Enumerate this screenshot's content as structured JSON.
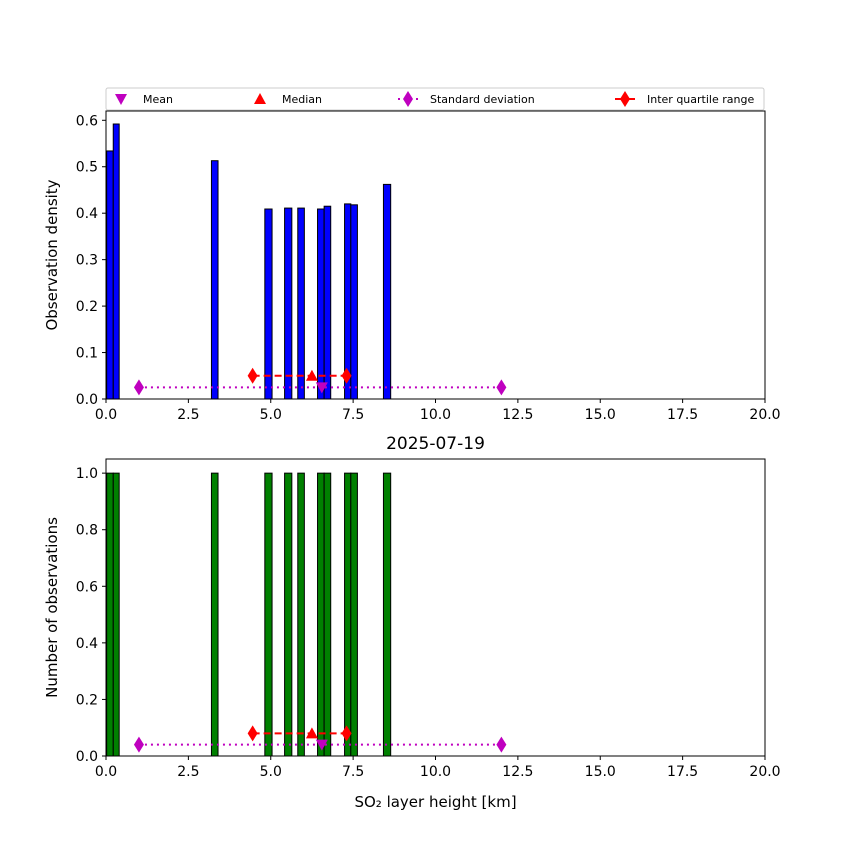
{
  "chart_data": [
    {
      "type": "bar",
      "title": "",
      "xlabel": "",
      "ylabel": "Observation density",
      "xlim": [
        0,
        20
      ],
      "ylim": [
        0,
        0.62
      ],
      "xticks": [
        "0.0",
        "2.5",
        "5.0",
        "7.5",
        "10.0",
        "12.5",
        "15.0",
        "17.5",
        "20.0"
      ],
      "yticks": [
        "0.0",
        "0.1",
        "0.2",
        "0.3",
        "0.4",
        "0.5",
        "0.6"
      ],
      "bar_color": "#0000ff",
      "bars": [
        {
          "left": 0.02,
          "right": 0.22,
          "value": 0.534
        },
        {
          "left": 0.22,
          "right": 0.4,
          "value": 0.592
        },
        {
          "left": 3.2,
          "right": 3.4,
          "value": 0.513
        },
        {
          "left": 4.82,
          "right": 5.04,
          "value": 0.409
        },
        {
          "left": 5.42,
          "right": 5.64,
          "value": 0.411
        },
        {
          "left": 5.82,
          "right": 6.02,
          "value": 0.411
        },
        {
          "left": 6.42,
          "right": 6.62,
          "value": 0.409
        },
        {
          "left": 6.62,
          "right": 6.82,
          "value": 0.415
        },
        {
          "left": 7.24,
          "right": 7.43,
          "value": 0.42
        },
        {
          "left": 7.43,
          "right": 7.63,
          "value": 0.418
        },
        {
          "left": 8.42,
          "right": 8.64,
          "value": 0.462
        }
      ],
      "stats": {
        "mean": [
          6.55,
          0.025
        ],
        "median": [
          6.25,
          0.05
        ],
        "std": [
          [
            1.0,
            0.025
          ],
          [
            12.0,
            0.025
          ]
        ],
        "iqr": [
          [
            4.45,
            0.05
          ],
          [
            7.3,
            0.05
          ]
        ]
      },
      "legend": {
        "placement": "top",
        "entries": [
          "Mean",
          "Median",
          "Standard deviation",
          "Inter quartile range"
        ]
      }
    },
    {
      "type": "bar",
      "title": "2025-07-19",
      "xlabel": "SO₂ layer height [km]",
      "ylabel": "Number of observations",
      "xlim": [
        0,
        20
      ],
      "ylim": [
        0,
        1.05
      ],
      "xticks": [
        "0.0",
        "2.5",
        "5.0",
        "7.5",
        "10.0",
        "12.5",
        "15.0",
        "17.5",
        "20.0"
      ],
      "yticks": [
        "0.0",
        "0.2",
        "0.4",
        "0.6",
        "0.8",
        "1.0"
      ],
      "bar_color": "#008000",
      "bars": [
        {
          "left": 0.02,
          "right": 0.22,
          "value": 1
        },
        {
          "left": 0.22,
          "right": 0.4,
          "value": 1
        },
        {
          "left": 3.2,
          "right": 3.4,
          "value": 1
        },
        {
          "left": 4.82,
          "right": 5.04,
          "value": 1
        },
        {
          "left": 5.42,
          "right": 5.64,
          "value": 1
        },
        {
          "left": 5.82,
          "right": 6.02,
          "value": 1
        },
        {
          "left": 6.42,
          "right": 6.62,
          "value": 1
        },
        {
          "left": 6.62,
          "right": 6.82,
          "value": 1
        },
        {
          "left": 7.24,
          "right": 7.43,
          "value": 1
        },
        {
          "left": 7.43,
          "right": 7.63,
          "value": 1
        },
        {
          "left": 8.42,
          "right": 8.64,
          "value": 1
        }
      ],
      "stats": {
        "mean": [
          6.55,
          0.04
        ],
        "median": [
          6.25,
          0.08
        ],
        "std": [
          [
            1.0,
            0.04
          ],
          [
            12.0,
            0.04
          ]
        ],
        "iqr": [
          [
            4.45,
            0.08
          ],
          [
            7.3,
            0.08
          ]
        ]
      }
    }
  ],
  "colors": {
    "mean": "#bf00bf",
    "median": "#ff0000",
    "std": "#bf00bf",
    "iqr": "#ff0000"
  }
}
